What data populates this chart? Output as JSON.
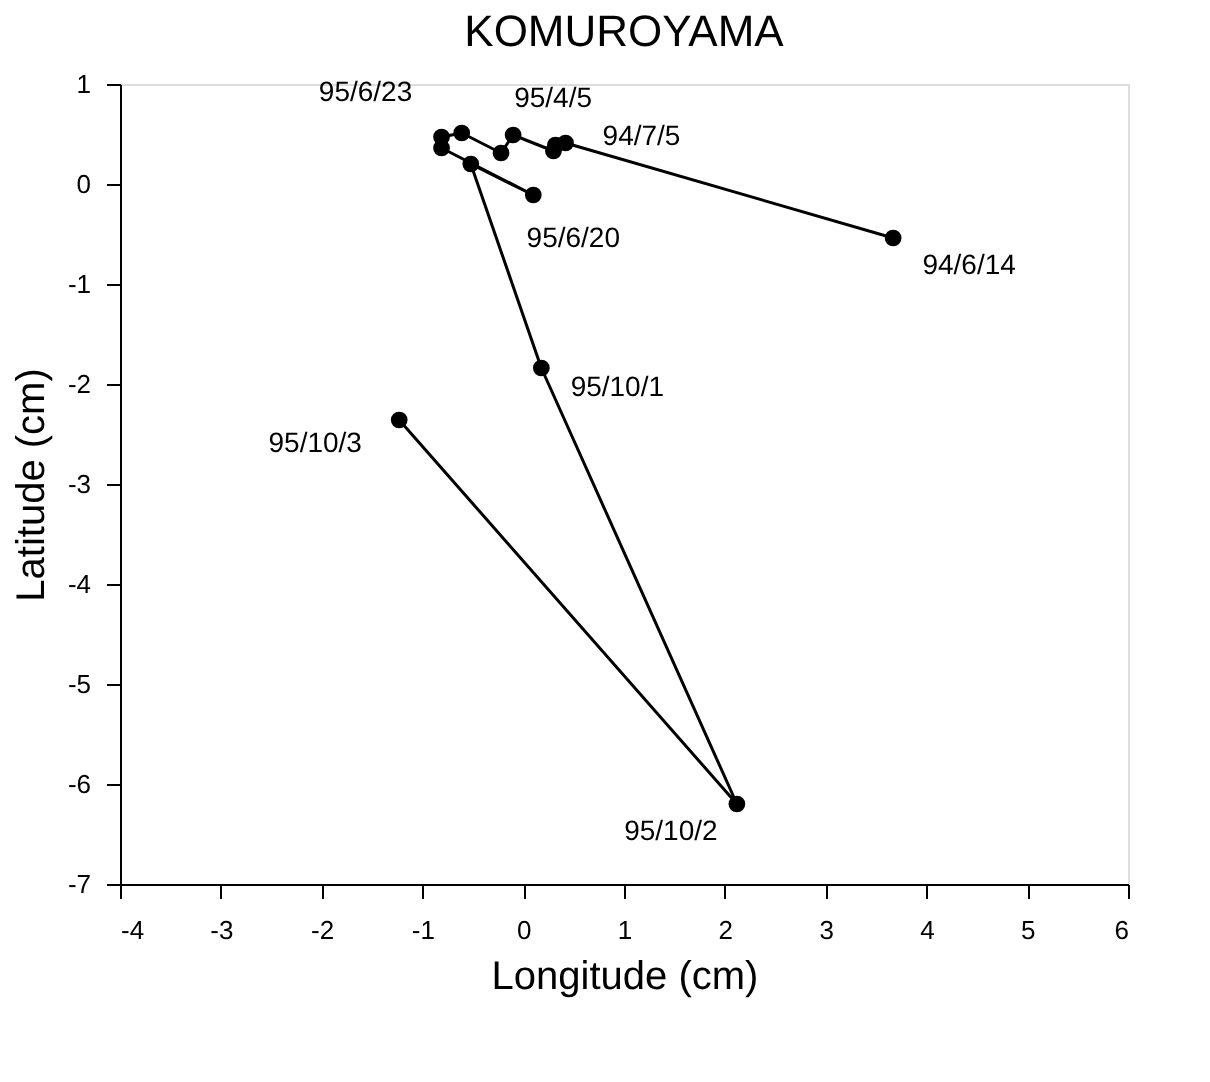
{
  "chart_data": {
    "type": "line",
    "title": "KOMUROYAMA",
    "xlabel": "Longitude (cm)",
    "ylabel": "Latitude (cm)",
    "x": [
      3.67,
      0.42,
      0.32,
      0.3,
      -0.1,
      -0.22,
      -0.61,
      -0.81,
      -0.81,
      0.1,
      -0.52,
      0.18,
      2.12,
      -1.23
    ],
    "series": [
      {
        "color": "#000000",
        "values": [
          -0.54,
          0.41,
          0.39,
          0.33,
          0.49,
          0.31,
          0.51,
          0.47,
          0.36,
          -0.11,
          0.2,
          -1.84,
          -6.2,
          -2.36
        ]
      }
    ],
    "marker": "circle",
    "line_style": "solid",
    "grid": false,
    "xlim": [
      -4,
      6
    ],
    "xticks": [
      -4,
      -3,
      -2,
      -1,
      0,
      1,
      2,
      3,
      4,
      5,
      6
    ],
    "ylim": [
      -7,
      1
    ],
    "yticks": [
      -7,
      -6,
      -5,
      -4,
      -3,
      -2,
      -1,
      0,
      1
    ],
    "annotations": [
      {
        "text": "94/6/14",
        "x": 3.67,
        "y": -0.54
      },
      {
        "text": "94/7/5",
        "x": 0.42,
        "y": 0.41
      },
      {
        "text": "95/4/5",
        "x": -0.1,
        "y": 0.49
      },
      {
        "text": "95/6/23",
        "x": -0.81,
        "y": 0.47
      },
      {
        "text": "95/6/20",
        "x": 0.1,
        "y": -0.11
      },
      {
        "text": "95/10/1",
        "x": 0.18,
        "y": -1.84
      },
      {
        "text": "95/10/2",
        "x": 2.12,
        "y": -6.2
      },
      {
        "text": "95/10/3",
        "x": -1.23,
        "y": -2.36
      }
    ]
  }
}
